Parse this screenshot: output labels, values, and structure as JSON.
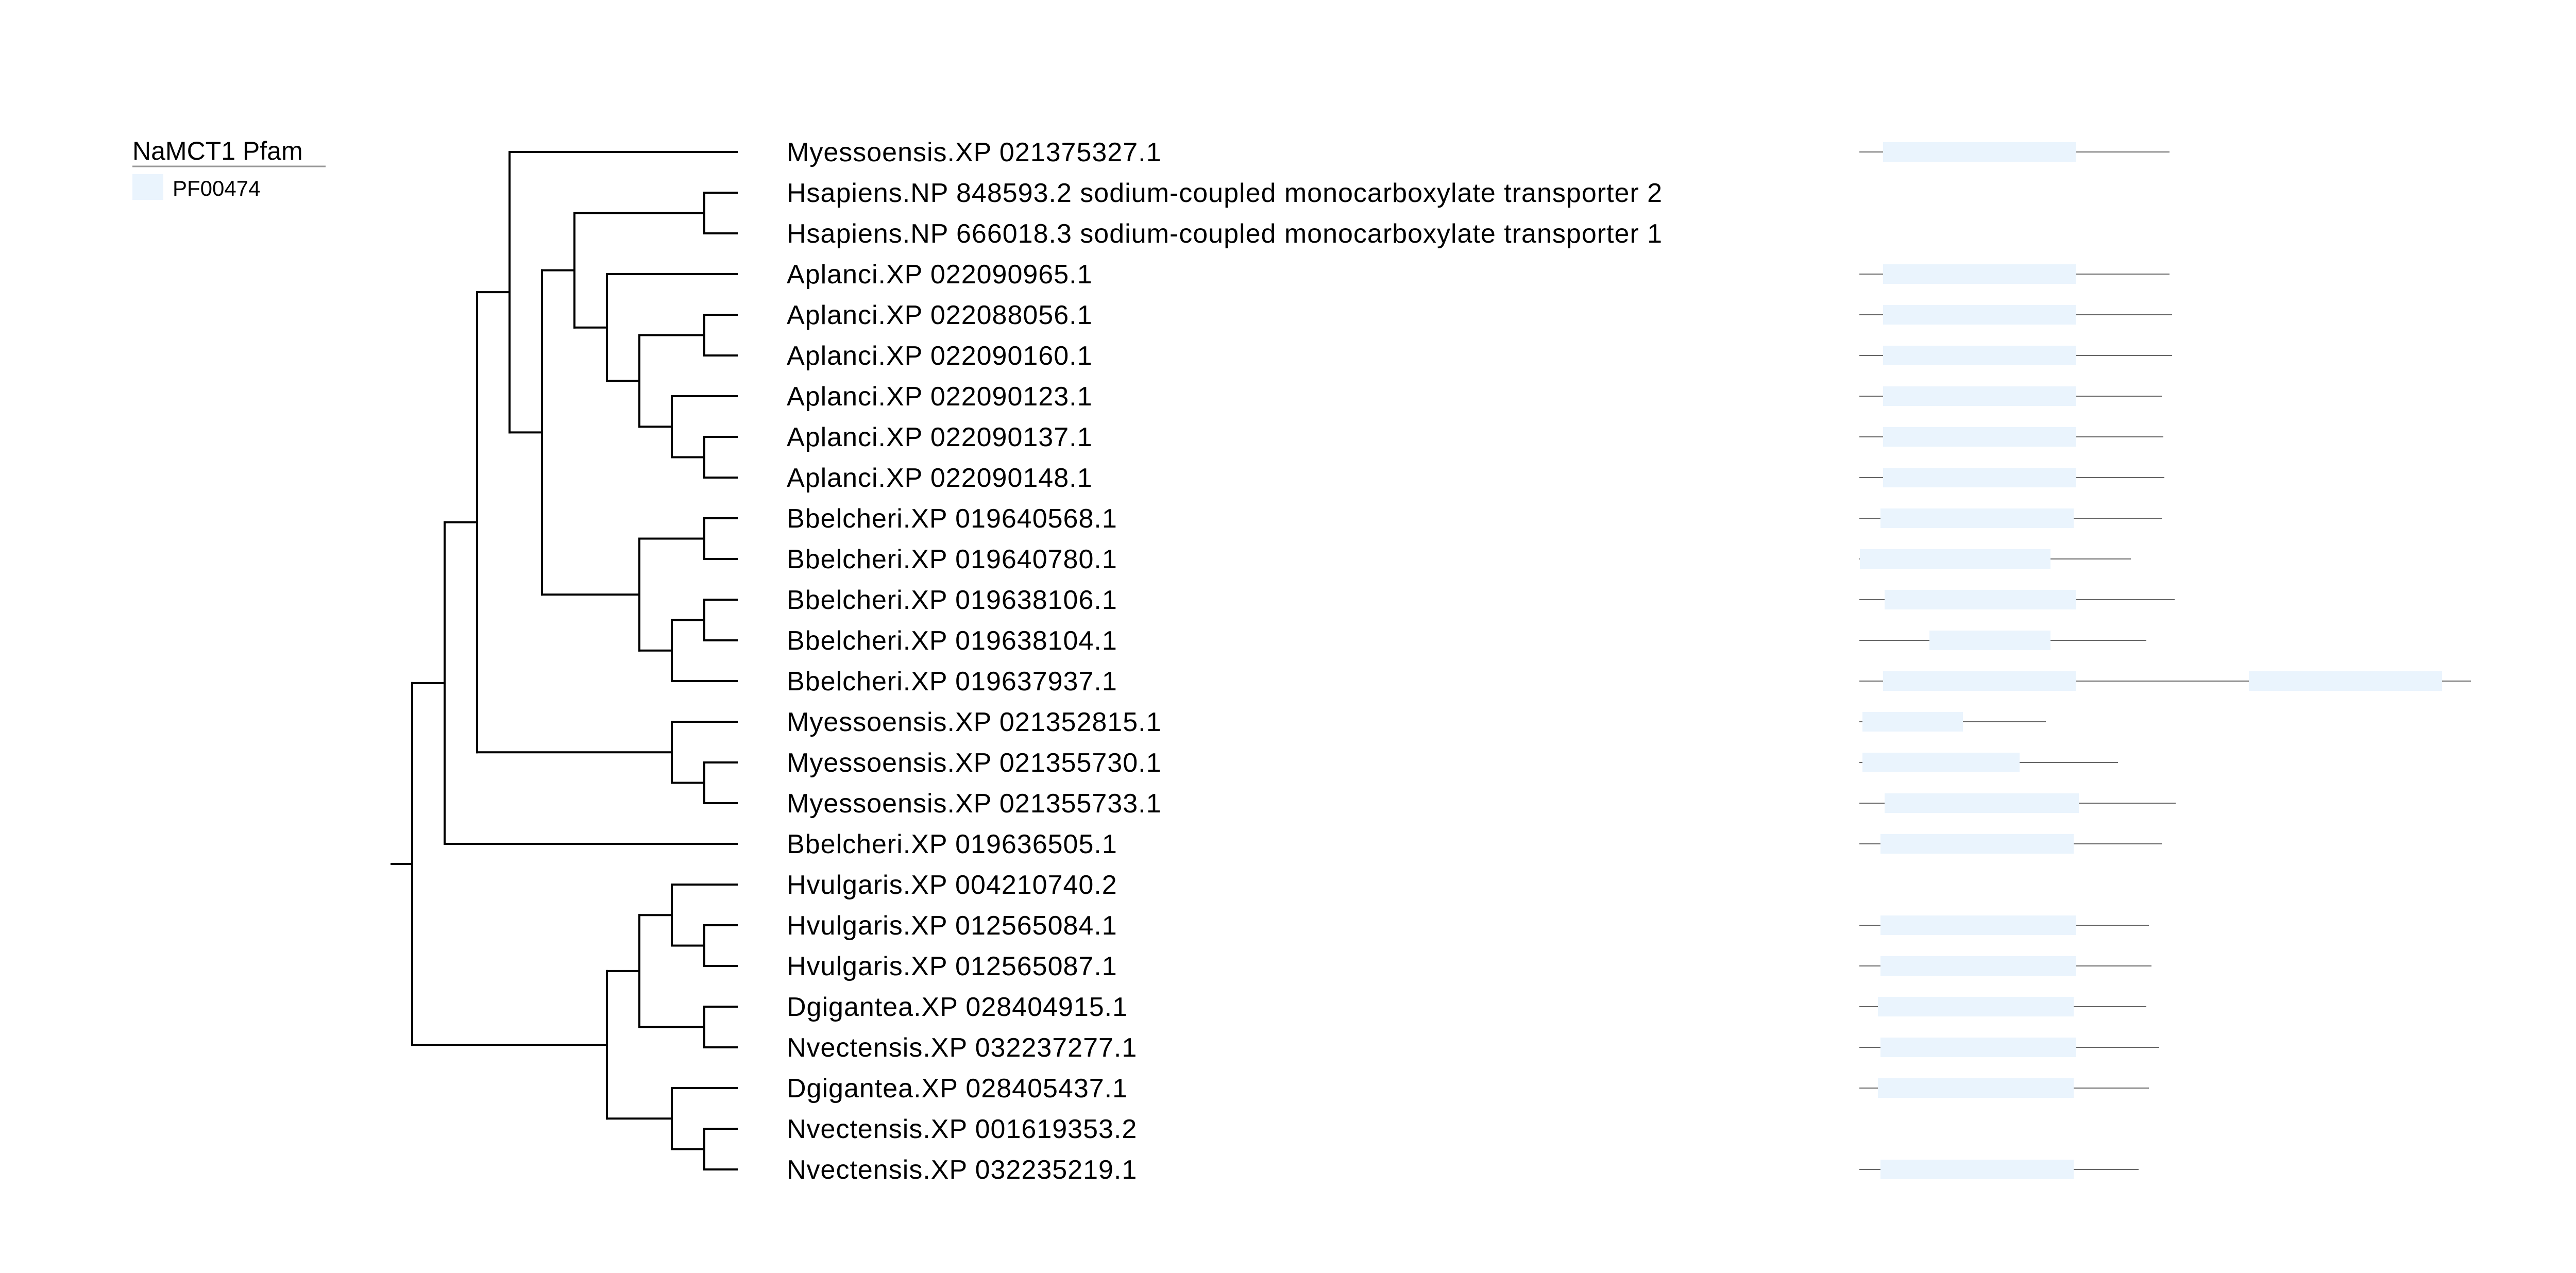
{
  "legend": {
    "title": "NaMCT1 Pfam",
    "items": [
      {
        "label": "PF00474",
        "color": "#eaf4fd"
      }
    ]
  },
  "colors": {
    "branch": "#000000",
    "backbone": "#666666",
    "domain": "#eaf4fd"
  },
  "leaves": [
    {
      "label": "Myessoensis.XP 021375327.1",
      "arch": {
        "len": 600,
        "domains": [
          [
            45,
            420
          ]
        ]
      }
    },
    {
      "label": "Hsapiens.NP 848593.2 sodium-coupled monocarboxylate transporter 2",
      "arch": null
    },
    {
      "label": "Hsapiens.NP 666018.3 sodium-coupled monocarboxylate transporter 1",
      "arch": null
    },
    {
      "label": "Aplanci.XP 022090965.1",
      "arch": {
        "len": 600,
        "domains": [
          [
            45,
            420
          ]
        ]
      }
    },
    {
      "label": "Aplanci.XP 022088056.1",
      "arch": {
        "len": 605,
        "domains": [
          [
            45,
            420
          ]
        ]
      }
    },
    {
      "label": "Aplanci.XP 022090160.1",
      "arch": {
        "len": 605,
        "domains": [
          [
            45,
            420
          ]
        ]
      }
    },
    {
      "label": "Aplanci.XP 022090123.1",
      "arch": {
        "len": 585,
        "domains": [
          [
            45,
            420
          ]
        ]
      }
    },
    {
      "label": "Aplanci.XP 022090137.1",
      "arch": {
        "len": 588,
        "domains": [
          [
            45,
            420
          ]
        ]
      }
    },
    {
      "label": "Aplanci.XP 022090148.1",
      "arch": {
        "len": 590,
        "domains": [
          [
            45,
            420
          ]
        ]
      }
    },
    {
      "label": "Bbelcheri.XP 019640568.1",
      "arch": {
        "len": 585,
        "domains": [
          [
            40,
            415
          ]
        ]
      }
    },
    {
      "label": "Bbelcheri.XP 019640780.1",
      "arch": {
        "len": 525,
        "domains": [
          [
            0,
            370
          ]
        ]
      }
    },
    {
      "label": "Bbelcheri.XP 019638106.1",
      "arch": {
        "len": 610,
        "domains": [
          [
            48,
            420
          ]
        ]
      }
    },
    {
      "label": "Bbelcheri.XP 019638104.1",
      "arch": {
        "len": 555,
        "domains": [
          [
            135,
            370
          ]
        ]
      }
    },
    {
      "label": "Bbelcheri.XP 019637937.1",
      "arch": {
        "len": 1185,
        "domains": [
          [
            45,
            420
          ],
          [
            755,
            1130
          ]
        ]
      }
    },
    {
      "label": "Myessoensis.XP 021352815.1",
      "arch": {
        "len": 360,
        "domains": [
          [
            5,
            200
          ]
        ]
      }
    },
    {
      "label": "Myessoensis.XP 021355730.1",
      "arch": {
        "len": 500,
        "domains": [
          [
            5,
            310
          ]
        ]
      }
    },
    {
      "label": "Myessoensis.XP 021355733.1",
      "arch": {
        "len": 612,
        "domains": [
          [
            48,
            425
          ]
        ]
      }
    },
    {
      "label": "Bbelcheri.XP 019636505.1",
      "arch": {
        "len": 585,
        "domains": [
          [
            40,
            415
          ]
        ]
      }
    },
    {
      "label": "Hvulgaris.XP 004210740.2",
      "arch": null
    },
    {
      "label": "Hvulgaris.XP 012565084.1",
      "arch": {
        "len": 560,
        "domains": [
          [
            40,
            420
          ]
        ]
      }
    },
    {
      "label": "Hvulgaris.XP 012565087.1",
      "arch": {
        "len": 565,
        "domains": [
          [
            40,
            420
          ]
        ]
      }
    },
    {
      "label": "Dgigantea.XP 028404915.1",
      "arch": {
        "len": 555,
        "domains": [
          [
            35,
            415
          ]
        ]
      }
    },
    {
      "label": "Nvectensis.XP 032237277.1",
      "arch": {
        "len": 580,
        "domains": [
          [
            40,
            420
          ]
        ]
      }
    },
    {
      "label": "Dgigantea.XP 028405437.1",
      "arch": {
        "len": 560,
        "domains": [
          [
            35,
            415
          ]
        ]
      }
    },
    {
      "label": "Nvectensis.XP 001619353.2",
      "arch": null
    },
    {
      "label": "Nvectensis.XP 032235219.1",
      "arch": {
        "len": 540,
        "domains": [
          [
            40,
            415
          ]
        ]
      }
    }
  ],
  "tree": {
    "c": [
      {
        "c": [
          {
            "c": [
              {
                "c": [
                  {
                    "l": 0
                  },
                  {
                    "c": [
                      {
                        "c": [
                          {
                            "c": [
                              {
                                "l": 1
                              },
                              {
                                "l": 2
                              }
                            ]
                          },
                          {
                            "c": [
                              {
                                "l": 3
                              },
                              {
                                "c": [
                                  {
                                    "c": [
                                      {
                                        "l": 4
                                      },
                                      {
                                        "l": 5
                                      }
                                    ]
                                  },
                                  {
                                    "c": [
                                      {
                                        "l": 6
                                      },
                                      {
                                        "c": [
                                          {
                                            "l": 7
                                          },
                                          {
                                            "l": 8
                                          }
                                        ]
                                      }
                                    ]
                                  }
                                ]
                              }
                            ]
                          }
                        ]
                      },
                      {
                        "c": [
                          {
                            "c": [
                              {
                                "l": 9
                              },
                              {
                                "l": 10
                              }
                            ]
                          },
                          {
                            "c": [
                              {
                                "c": [
                                  {
                                    "l": 11
                                  },
                                  {
                                    "l": 12
                                  }
                                ]
                              },
                              {
                                "l": 13
                              }
                            ]
                          }
                        ]
                      }
                    ]
                  }
                ]
              },
              {
                "c": [
                  {
                    "l": 14
                  },
                  {
                    "c": [
                      {
                        "l": 15
                      },
                      {
                        "l": 16
                      }
                    ]
                  }
                ]
              }
            ]
          },
          {
            "l": 17
          }
        ]
      },
      {
        "c": [
          {
            "c": [
              {
                "c": [
                  {
                    "l": 18
                  },
                  {
                    "c": [
                      {
                        "l": 19
                      },
                      {
                        "l": 20
                      }
                    ]
                  }
                ]
              },
              {
                "c": [
                  {
                    "l": 21
                  },
                  {
                    "l": 22
                  }
                ]
              }
            ]
          },
          {
            "c": [
              {
                "l": 23
              },
              {
                "c": [
                  {
                    "l": 24
                  },
                  {
                    "l": 25
                  }
                ]
              }
            ]
          }
        ]
      }
    ]
  }
}
